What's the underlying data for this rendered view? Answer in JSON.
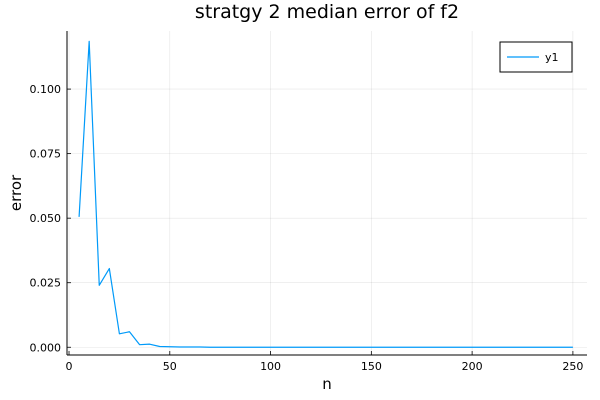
{
  "chart_data": {
    "type": "line",
    "title": "stratgy 2 median error of f2",
    "xlabel": "n",
    "ylabel": "error",
    "xlim": [
      -1,
      257
    ],
    "ylim": [
      -0.003,
      0.1225
    ],
    "x_ticks": [
      0,
      50,
      100,
      150,
      200,
      250
    ],
    "x_tick_labels": [
      "0",
      "50",
      "100",
      "150",
      "200",
      "250"
    ],
    "y_ticks": [
      0.0,
      0.025,
      0.05,
      0.075,
      0.1
    ],
    "y_tick_labels": [
      "0.000",
      "0.025",
      "0.050",
      "0.075",
      "0.100"
    ],
    "grid": true,
    "legend": {
      "position": "top-right",
      "entries": [
        "y1"
      ]
    },
    "series": [
      {
        "name": "y1",
        "color": "#009af9",
        "x": [
          5,
          10,
          15,
          20,
          25,
          30,
          35,
          40,
          45,
          50,
          55,
          60,
          65,
          70,
          75,
          80,
          85,
          90,
          95,
          100,
          105,
          110,
          115,
          120,
          125,
          130,
          135,
          140,
          145,
          150,
          155,
          160,
          165,
          170,
          175,
          180,
          185,
          190,
          195,
          200,
          205,
          210,
          215,
          220,
          225,
          230,
          235,
          240,
          245,
          250
        ],
        "y": [
          0.0505,
          0.1185,
          0.024,
          0.0305,
          0.0052,
          0.006,
          0.001,
          0.0012,
          0.0003,
          0.0002,
          0.0001,
          0.0001,
          0.0001,
          0.0,
          0.0,
          0.0,
          0.0,
          0.0,
          0.0,
          0.0,
          0.0,
          0.0,
          0.0,
          0.0,
          0.0,
          0.0,
          0.0,
          0.0,
          0.0,
          0.0,
          0.0,
          0.0,
          0.0,
          0.0,
          0.0,
          0.0,
          0.0,
          0.0,
          0.0,
          0.0,
          0.0,
          0.0,
          0.0,
          0.0,
          0.0,
          0.0,
          0.0,
          0.0,
          0.0,
          0.0
        ]
      }
    ]
  }
}
